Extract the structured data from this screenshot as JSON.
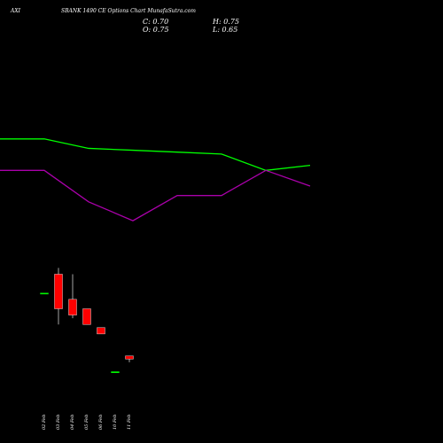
{
  "header": {
    "symbol": "AXI",
    "title": "SBANK 1490  CE Options  Chart MunafaSutra.com"
  },
  "ohlc": {
    "close_label": "C: 0.70",
    "high_label": "H: 0.75",
    "open_label": "O: 0.75",
    "low_label": "L: 0.65"
  },
  "chart_data": {
    "type": "candlestick",
    "title": "SBANK 1490  CE Options  Chart MunafaSutra.com",
    "x_labels": [
      "02 Feb",
      "03 Feb",
      "04 Feb",
      "05 Feb",
      "06 Feb",
      "10 Feb",
      "11 Feb"
    ],
    "candles": [
      {
        "date": "02 Feb",
        "open": 1.75,
        "high": 1.75,
        "low": 1.75,
        "close": 1.75,
        "color": "#00ff00"
      },
      {
        "date": "03 Feb",
        "open": 2.05,
        "high": 2.15,
        "low": 1.25,
        "close": 1.5,
        "color": "#ff0000"
      },
      {
        "date": "04 Feb",
        "open": 1.65,
        "high": 2.05,
        "low": 1.35,
        "close": 1.4,
        "color": "#ff0000"
      },
      {
        "date": "05 Feb",
        "open": 1.5,
        "high": 1.5,
        "low": 1.25,
        "close": 1.25,
        "color": "#ff0000"
      },
      {
        "date": "06 Feb",
        "open": 1.2,
        "high": 1.2,
        "low": 1.1,
        "close": 1.1,
        "color": "#ff0000"
      },
      {
        "date": "10 Feb",
        "open": 0.5,
        "high": 0.5,
        "low": 0.5,
        "close": 0.5,
        "color": "#00ff00"
      },
      {
        "date": "11 Feb",
        "open": 0.75,
        "high": 0.75,
        "low": 0.65,
        "close": 0.7,
        "color": "#ff0000"
      }
    ],
    "price_range": [
      0,
      5
    ],
    "lines": [
      {
        "color": "#00ff00",
        "points": [
          [
            0,
            4.2
          ],
          [
            1,
            4.2
          ],
          [
            2,
            4.05
          ],
          [
            3,
            4.02
          ],
          [
            4,
            3.99
          ],
          [
            5,
            3.96
          ],
          [
            6,
            3.7
          ],
          [
            7,
            3.78
          ]
        ]
      },
      {
        "color": "#aa00aa",
        "points": [
          [
            0,
            3.7
          ],
          [
            1,
            3.7
          ],
          [
            2,
            3.2
          ],
          [
            3,
            2.9
          ],
          [
            4,
            3.3
          ],
          [
            5,
            3.3
          ],
          [
            6,
            3.7
          ],
          [
            7,
            3.45
          ]
        ]
      }
    ],
    "line_x_positions": [
      0,
      50,
      100,
      150,
      200,
      250,
      300,
      350
    ],
    "grid": false,
    "colors": {
      "background": "#000000",
      "up": "#00ff00",
      "down": "#ff0000"
    }
  }
}
